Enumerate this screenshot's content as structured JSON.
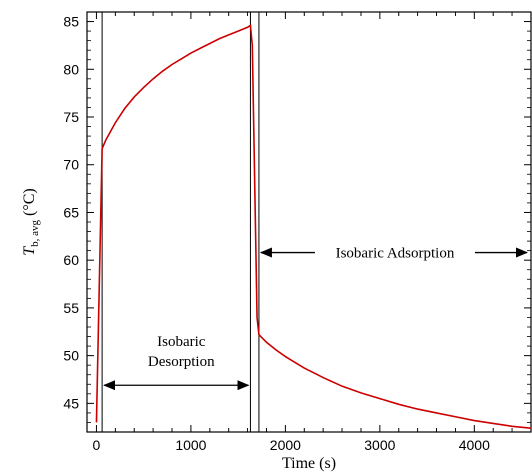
{
  "chart_data": {
    "type": "line",
    "title": "",
    "xlabel": "Time (s)",
    "ylabel": {
      "symbol": "T",
      "subscript": "b, avg",
      "unit": "(°C)"
    },
    "xlim": [
      -100,
      4600
    ],
    "ylim": [
      42,
      86
    ],
    "xticks": [
      0,
      1000,
      2000,
      3000,
      4000
    ],
    "yticks": [
      45,
      50,
      55,
      60,
      65,
      70,
      75,
      80,
      85
    ],
    "grid": false,
    "legend": "none",
    "line_color": "#cc0000",
    "series": [
      {
        "x": [
          0,
          60,
          100,
          200,
          300,
          400,
          500,
          600,
          700,
          800,
          900,
          1000,
          1100,
          1200,
          1300,
          1400,
          1500,
          1600,
          1630,
          1650,
          1700,
          1720,
          1800,
          1900,
          2000,
          2200,
          2400,
          2600,
          2800,
          3000,
          3200,
          3400,
          3600,
          3800,
          4000,
          4200,
          4400,
          4600
        ],
        "y": [
          43,
          71.7,
          72.6,
          74.4,
          75.9,
          77.1,
          78.1,
          79.0,
          79.8,
          80.5,
          81.1,
          81.7,
          82.2,
          82.7,
          83.2,
          83.6,
          84.0,
          84.4,
          84.6,
          82.5,
          54.0,
          52.2,
          51.4,
          50.6,
          49.9,
          48.7,
          47.7,
          46.8,
          46.1,
          45.5,
          44.9,
          44.4,
          44.0,
          43.6,
          43.2,
          42.9,
          42.6,
          42.4
        ]
      }
    ],
    "phase_boundaries": [
      60,
      1630,
      1720
    ],
    "annotations": [
      {
        "lines": [
          "Isobaric",
          "Desorption"
        ],
        "arrow_from": 60,
        "arrow_to": 1630
      },
      {
        "lines": [
          "Isobaric Adsorption"
        ],
        "arrow_from": 1720,
        "arrow_to": 4600
      }
    ]
  }
}
